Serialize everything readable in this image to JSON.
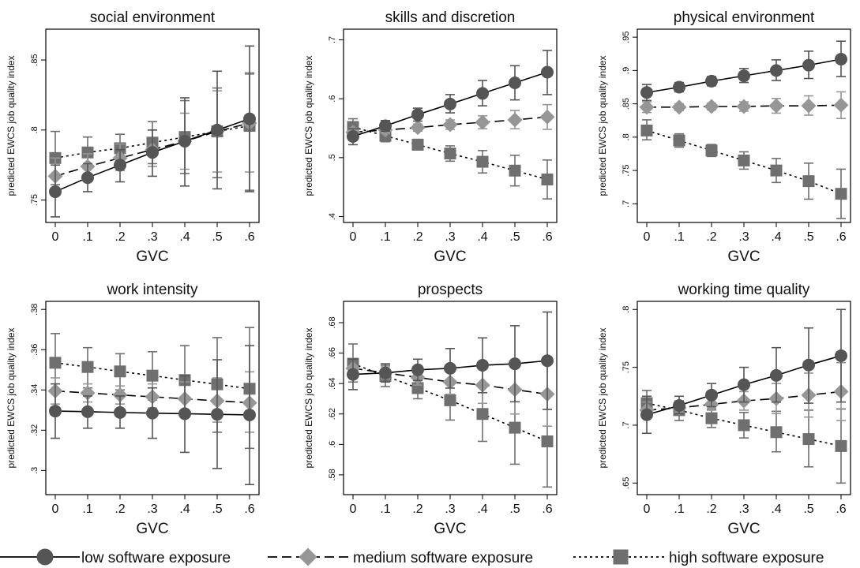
{
  "legend": [
    {
      "key": "low",
      "label": "low software exposure",
      "color": "#555555",
      "marker": "circle",
      "dash": "solid"
    },
    {
      "key": "medium",
      "label": "medium software exposure",
      "color": "#969696",
      "marker": "diamond",
      "dash": "dashed"
    },
    {
      "key": "high",
      "label": "high software exposure",
      "color": "#6f6f6f",
      "marker": "square",
      "dash": "dotted"
    }
  ],
  "chart_data": [
    {
      "type": "line",
      "title": "social environment",
      "xlabel": "GVC",
      "ylabel": "predicted EWCS job quality index",
      "x": [
        0,
        0.1,
        0.2,
        0.3,
        0.4,
        0.5,
        0.6
      ],
      "xticks": [
        "0",
        ".1",
        ".2",
        ".3",
        ".4",
        ".5",
        ".6"
      ],
      "ylim": [
        0.734,
        0.872
      ],
      "yticks": [
        0.75,
        0.8,
        0.85
      ],
      "yticklabels": [
        ".75",
        ".8",
        ".85"
      ],
      "series": [
        {
          "name": "low software exposure",
          "values": [
            0.756,
            0.766,
            0.775,
            0.784,
            0.792,
            0.8,
            0.808
          ],
          "ci": [
            [
              0.738,
              0.775
            ],
            [
              0.756,
              0.776
            ],
            [
              0.763,
              0.786
            ],
            [
              0.767,
              0.8
            ],
            [
              0.76,
              0.823
            ],
            [
              0.758,
              0.842
            ],
            [
              0.756,
              0.86
            ]
          ]
        },
        {
          "name": "medium software exposure",
          "values": [
            0.767,
            0.774,
            0.78,
            0.786,
            0.792,
            0.799,
            0.805
          ],
          "ci": [
            [
              0.755,
              0.78
            ],
            [
              0.765,
              0.783
            ],
            [
              0.771,
              0.79
            ],
            [
              0.774,
              0.8
            ],
            [
              0.772,
              0.812
            ],
            [
              0.77,
              0.828
            ],
            [
              0.77,
              0.841
            ]
          ]
        },
        {
          "name": "high software exposure",
          "values": [
            0.78,
            0.784,
            0.787,
            0.791,
            0.795,
            0.799,
            0.803
          ],
          "ci": [
            [
              0.761,
              0.799
            ],
            [
              0.773,
              0.795
            ],
            [
              0.777,
              0.797
            ],
            [
              0.776,
              0.806
            ],
            [
              0.769,
              0.821
            ],
            [
              0.766,
              0.83
            ],
            [
              0.757,
              0.84
            ]
          ]
        }
      ]
    },
    {
      "type": "line",
      "title": "skills and discretion",
      "xlabel": "GVC",
      "ylabel": "predicted EWCS job quality index",
      "x": [
        0,
        0.1,
        0.2,
        0.3,
        0.4,
        0.5,
        0.6
      ],
      "xticks": [
        "0",
        ".1",
        ".2",
        ".3",
        ".4",
        ".5",
        ".6"
      ],
      "ylim": [
        0.39,
        0.718
      ],
      "yticks": [
        0.4,
        0.5,
        0.6,
        0.7
      ],
      "yticklabels": [
        ".4",
        ".5",
        ".6",
        ".7"
      ],
      "series": [
        {
          "name": "low software exposure",
          "values": [
            0.536,
            0.554,
            0.573,
            0.591,
            0.609,
            0.627,
            0.645
          ],
          "ci": [
            [
              0.522,
              0.549
            ],
            [
              0.545,
              0.563
            ],
            [
              0.562,
              0.584
            ],
            [
              0.576,
              0.607
            ],
            [
              0.588,
              0.631
            ],
            [
              0.598,
              0.656
            ],
            [
              0.607,
              0.682
            ]
          ]
        },
        {
          "name": "medium software exposure",
          "values": [
            0.543,
            0.547,
            0.551,
            0.556,
            0.56,
            0.564,
            0.569
          ],
          "ci": [
            [
              0.536,
              0.55
            ],
            [
              0.541,
              0.553
            ],
            [
              0.545,
              0.557
            ],
            [
              0.548,
              0.564
            ],
            [
              0.549,
              0.571
            ],
            [
              0.549,
              0.58
            ],
            [
              0.548,
              0.59
            ]
          ]
        },
        {
          "name": "high software exposure",
          "values": [
            0.552,
            0.537,
            0.522,
            0.507,
            0.493,
            0.478,
            0.463
          ],
          "ci": [
            [
              0.538,
              0.566
            ],
            [
              0.527,
              0.547
            ],
            [
              0.513,
              0.531
            ],
            [
              0.494,
              0.52
            ],
            [
              0.474,
              0.512
            ],
            [
              0.452,
              0.504
            ],
            [
              0.43,
              0.496
            ]
          ]
        }
      ]
    },
    {
      "type": "line",
      "title": "physical environment",
      "xlabel": "GVC",
      "ylabel": "predicted EWCS job quality index",
      "x": [
        0,
        0.1,
        0.2,
        0.3,
        0.4,
        0.5,
        0.6
      ],
      "xticks": [
        "0",
        ".1",
        ".2",
        ".3",
        ".4",
        ".5",
        ".6"
      ],
      "ylim": [
        0.672,
        0.962
      ],
      "yticks": [
        0.7,
        0.75,
        0.8,
        0.85,
        0.9,
        0.95
      ],
      "yticklabels": [
        ".7",
        ".75",
        ".8",
        ".85",
        ".9",
        ".95"
      ],
      "series": [
        {
          "name": "low software exposure",
          "values": [
            0.867,
            0.875,
            0.884,
            0.892,
            0.9,
            0.908,
            0.917
          ],
          "ci": [
            [
              0.855,
              0.879
            ],
            [
              0.868,
              0.882
            ],
            [
              0.877,
              0.891
            ],
            [
              0.882,
              0.903
            ],
            [
              0.885,
              0.916
            ],
            [
              0.888,
              0.929
            ],
            [
              0.891,
              0.944
            ]
          ]
        },
        {
          "name": "medium software exposure",
          "values": [
            0.845,
            0.845,
            0.846,
            0.846,
            0.847,
            0.847,
            0.848
          ],
          "ci": [
            [
              0.837,
              0.853
            ],
            [
              0.84,
              0.85
            ],
            [
              0.841,
              0.851
            ],
            [
              0.839,
              0.853
            ],
            [
              0.836,
              0.858
            ],
            [
              0.833,
              0.862
            ],
            [
              0.828,
              0.868
            ]
          ]
        },
        {
          "name": "high software exposure",
          "values": [
            0.81,
            0.795,
            0.78,
            0.765,
            0.75,
            0.734,
            0.715
          ],
          "ci": [
            [
              0.796,
              0.826
            ],
            [
              0.785,
              0.805
            ],
            [
              0.771,
              0.789
            ],
            [
              0.752,
              0.778
            ],
            [
              0.732,
              0.768
            ],
            [
              0.707,
              0.761
            ],
            [
              0.678,
              0.752
            ]
          ]
        }
      ]
    },
    {
      "type": "line",
      "title": "work intensity",
      "xlabel": "GVC",
      "ylabel": "predicted EWCS job quality index",
      "x": [
        0,
        0.1,
        0.2,
        0.3,
        0.4,
        0.5,
        0.6
      ],
      "xticks": [
        "0",
        ".1",
        ".2",
        ".3",
        ".4",
        ".5",
        ".6"
      ],
      "ylim": [
        0.288,
        0.384
      ],
      "yticks": [
        0.3,
        0.32,
        0.34,
        0.36,
        0.38
      ],
      "yticklabels": [
        ".3",
        ".32",
        ".34",
        ".36",
        ".38"
      ],
      "series": [
        {
          "name": "low software exposure",
          "values": [
            0.3295,
            0.3292,
            0.3288,
            0.3285,
            0.3282,
            0.3279,
            0.3276
          ],
          "ci": [
            [
              0.316,
              0.343
            ],
            [
              0.321,
              0.337
            ],
            [
              0.321,
              0.337
            ],
            [
              0.316,
              0.341
            ],
            [
              0.309,
              0.347
            ],
            [
              0.301,
              0.355
            ],
            [
              0.293,
              0.362
            ]
          ]
        },
        {
          "name": "medium software exposure",
          "values": [
            0.3395,
            0.3385,
            0.3375,
            0.3366,
            0.3356,
            0.3346,
            0.3336
          ],
          "ci": [
            [
              0.333,
              0.346
            ],
            [
              0.334,
              0.343
            ],
            [
              0.333,
              0.342
            ],
            [
              0.331,
              0.343
            ],
            [
              0.328,
              0.344
            ],
            [
              0.324,
              0.346
            ],
            [
              0.319,
              0.349
            ]
          ]
        },
        {
          "name": "high software exposure",
          "values": [
            0.3535,
            0.3514,
            0.3492,
            0.3471,
            0.3449,
            0.3428,
            0.3406
          ],
          "ci": [
            [
              0.339,
              0.368
            ],
            [
              0.341,
              0.361
            ],
            [
              0.34,
              0.358
            ],
            [
              0.335,
              0.359
            ],
            [
              0.328,
              0.362
            ],
            [
              0.319,
              0.366
            ],
            [
              0.311,
              0.371
            ]
          ]
        }
      ]
    },
    {
      "type": "line",
      "title": "prospects",
      "xlabel": "GVC",
      "ylabel": "predicted EWCS job quality index",
      "x": [
        0,
        0.1,
        0.2,
        0.3,
        0.4,
        0.5,
        0.6
      ],
      "xticks": [
        "0",
        ".1",
        ".2",
        ".3",
        ".4",
        ".5",
        ".6"
      ],
      "ylim": [
        0.567,
        0.694
      ],
      "yticks": [
        0.58,
        0.6,
        0.62,
        0.64,
        0.66,
        0.68
      ],
      "yticklabels": [
        ".58",
        ".6",
        ".62",
        ".64",
        ".66",
        ".68"
      ],
      "series": [
        {
          "name": "low software exposure",
          "values": [
            0.646,
            0.647,
            0.649,
            0.65,
            0.652,
            0.653,
            0.655
          ],
          "ci": [
            [
              0.636,
              0.656
            ],
            [
              0.641,
              0.653
            ],
            [
              0.642,
              0.656
            ],
            [
              0.637,
              0.663
            ],
            [
              0.634,
              0.67
            ],
            [
              0.628,
              0.678
            ],
            [
              0.623,
              0.687
            ]
          ]
        },
        {
          "name": "medium software exposure",
          "values": [
            0.65,
            0.647,
            0.644,
            0.641,
            0.639,
            0.636,
            0.633
          ],
          "ci": [
            [
              0.644,
              0.656
            ],
            [
              0.643,
              0.651
            ],
            [
              0.639,
              0.649
            ],
            [
              0.633,
              0.649
            ],
            [
              0.627,
              0.651
            ],
            [
              0.62,
              0.652
            ],
            [
              0.612,
              0.654
            ]
          ]
        },
        {
          "name": "high software exposure",
          "values": [
            0.653,
            0.645,
            0.637,
            0.629,
            0.62,
            0.611,
            0.602
          ],
          "ci": [
            [
              0.641,
              0.666
            ],
            [
              0.638,
              0.652
            ],
            [
              0.63,
              0.644
            ],
            [
              0.616,
              0.642
            ],
            [
              0.602,
              0.638
            ],
            [
              0.587,
              0.635
            ],
            [
              0.572,
              0.632
            ]
          ]
        }
      ]
    },
    {
      "type": "line",
      "title": "working time quality",
      "xlabel": "GVC",
      "ylabel": "predicted EWCS job quality index",
      "x": [
        0,
        0.1,
        0.2,
        0.3,
        0.4,
        0.5,
        0.6
      ],
      "xticks": [
        "0",
        ".1",
        ".2",
        ".3",
        ".4",
        ".5",
        ".6"
      ],
      "ylim": [
        0.64,
        0.807
      ],
      "yticks": [
        0.65,
        0.7,
        0.75,
        0.8
      ],
      "yticklabels": [
        ".65",
        ".7",
        ".75",
        ".8"
      ],
      "series": [
        {
          "name": "low software exposure",
          "values": [
            0.709,
            0.717,
            0.726,
            0.735,
            0.743,
            0.752,
            0.76
          ],
          "ci": [
            [
              0.693,
              0.725
            ],
            [
              0.71,
              0.725
            ],
            [
              0.716,
              0.736
            ],
            [
              0.72,
              0.75
            ],
            [
              0.72,
              0.767
            ],
            [
              0.719,
              0.784
            ],
            [
              0.72,
              0.8
            ]
          ]
        },
        {
          "name": "medium software exposure",
          "values": [
            0.713,
            0.715,
            0.718,
            0.721,
            0.723,
            0.726,
            0.729
          ],
          "ci": [
            [
              0.706,
              0.72
            ],
            [
              0.711,
              0.72
            ],
            [
              0.713,
              0.723
            ],
            [
              0.713,
              0.729
            ],
            [
              0.71,
              0.736
            ],
            [
              0.707,
              0.745
            ],
            [
              0.704,
              0.754
            ]
          ]
        },
        {
          "name": "high software exposure",
          "values": [
            0.719,
            0.713,
            0.706,
            0.7,
            0.694,
            0.688,
            0.682
          ],
          "ci": [
            [
              0.708,
              0.73
            ],
            [
              0.704,
              0.721
            ],
            [
              0.698,
              0.714
            ],
            [
              0.689,
              0.711
            ],
            [
              0.677,
              0.712
            ],
            [
              0.664,
              0.713
            ],
            [
              0.65,
              0.714
            ]
          ]
        }
      ]
    }
  ]
}
